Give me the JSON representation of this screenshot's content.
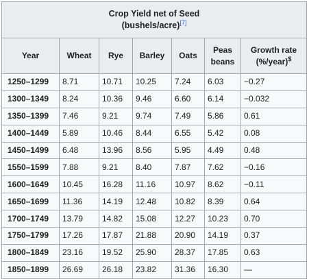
{
  "table": {
    "title": "Crop Yield net of Seed",
    "subtitle": "(bushels/acre)",
    "ref": "[7]",
    "columns": [
      {
        "label": "Year",
        "line2": "",
        "sup": ""
      },
      {
        "label": "Wheat",
        "line2": "",
        "sup": ""
      },
      {
        "label": "Rye",
        "line2": "",
        "sup": ""
      },
      {
        "label": "Barley",
        "line2": "",
        "sup": ""
      },
      {
        "label": "Oats",
        "line2": "",
        "sup": ""
      },
      {
        "label": "Peas",
        "line2": "beans",
        "sup": ""
      },
      {
        "label": "Growth rate",
        "line2": "(%/year)",
        "sup": "$"
      }
    ],
    "rows": [
      [
        "1250–1299",
        "8.71",
        "10.71",
        "10.25",
        "7.24",
        "6.03",
        "−0.27"
      ],
      [
        "1300–1349",
        "8.24",
        "10.36",
        "9.46",
        "6.60",
        "6.14",
        "−0.032"
      ],
      [
        "1350–1399",
        "7.46",
        "9.21",
        "9.74",
        "7.49",
        "5.86",
        "0.61"
      ],
      [
        "1400–1449",
        "5.89",
        "10.46",
        "8.44",
        "6.55",
        "5.42",
        "0.08"
      ],
      [
        "1450–1499",
        "6.48",
        "13.96",
        "8.56",
        "5.95",
        "4.49",
        "0.48"
      ],
      [
        "1550–1599",
        "7.88",
        "9.21",
        "8.40",
        "7.87",
        "7.62",
        "−0.16"
      ],
      [
        "1600–1649",
        "10.45",
        "16.28",
        "11.16",
        "10.97",
        "8.62",
        "−0.11"
      ],
      [
        "1650–1699",
        "11.36",
        "14.19",
        "12.48",
        "10.82",
        "8.39",
        "0.64"
      ],
      [
        "1700–1749",
        "13.79",
        "14.82",
        "15.08",
        "12.27",
        "10.23",
        "0.70"
      ],
      [
        "1750–1799",
        "17.26",
        "17.87",
        "21.88",
        "20.90",
        "14.19",
        "0.37"
      ],
      [
        "1800–1849",
        "23.16",
        "19.52",
        "25.90",
        "28.37",
        "17.85",
        "0.63"
      ],
      [
        "1850–1899",
        "26.69",
        "26.18",
        "23.82",
        "31.36",
        "16.30",
        "—"
      ]
    ]
  }
}
